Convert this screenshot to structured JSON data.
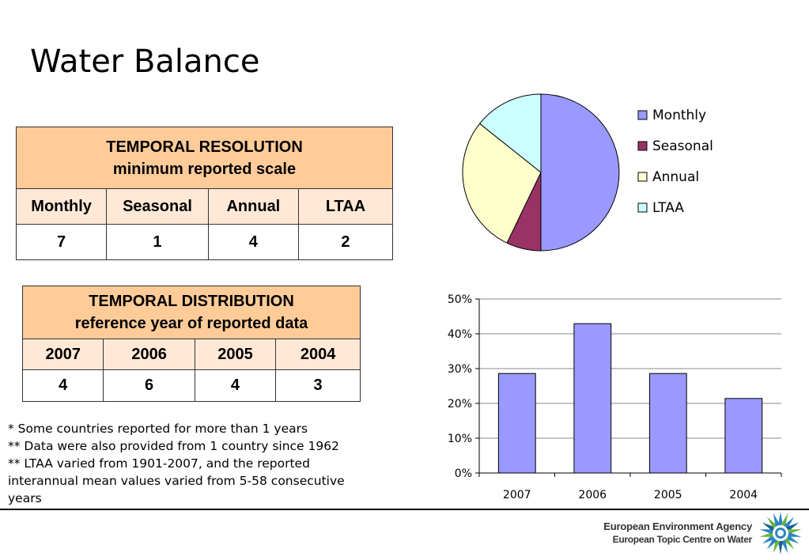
{
  "page": {
    "title": "Water Balance"
  },
  "table_resolution": {
    "header_line1": "TEMPORAL RESOLUTION",
    "header_line2": "minimum reported scale",
    "columns": [
      "Monthly",
      "Seasonal",
      "Annual",
      "LTAA"
    ],
    "values": [
      "7",
      "1",
      "4",
      "2"
    ]
  },
  "table_distribution": {
    "header_line1": "TEMPORAL DISTRIBUTION",
    "header_line2": "reference year of reported data",
    "columns": [
      "2007",
      "2006",
      "2005",
      "2004"
    ],
    "values": [
      "4",
      "6",
      "4",
      "3"
    ]
  },
  "footnotes": [
    "* Some countries reported for more than 1 years",
    "** Data were also provided from 1 country since 1962",
    "** LTAA varied from 1901-2007, and the reported",
    "interannual mean values varied from 5-58 consecutive",
    "years"
  ],
  "footer": {
    "agency_line1": "European Environment Agency",
    "agency_line2": "European Topic Centre on Water",
    "logo_icon": "eea-sun-logo-icon"
  },
  "chart_data": [
    {
      "type": "pie",
      "labels": [
        "Monthly",
        "Seasonal",
        "Annual",
        "LTAA"
      ],
      "values": [
        7,
        1,
        4,
        2
      ],
      "colors": [
        "#9999ff",
        "#993366",
        "#ffffcc",
        "#ccffff"
      ],
      "legend": "right"
    },
    {
      "type": "bar",
      "categories": [
        "2007",
        "2006",
        "2005",
        "2004"
      ],
      "values": [
        28.6,
        42.9,
        28.6,
        21.4
      ],
      "ylim": [
        0,
        50
      ],
      "yticks": [
        "0%",
        "10%",
        "20%",
        "30%",
        "40%",
        "50%"
      ],
      "grid": true,
      "bar_color": "#9999ff"
    }
  ]
}
